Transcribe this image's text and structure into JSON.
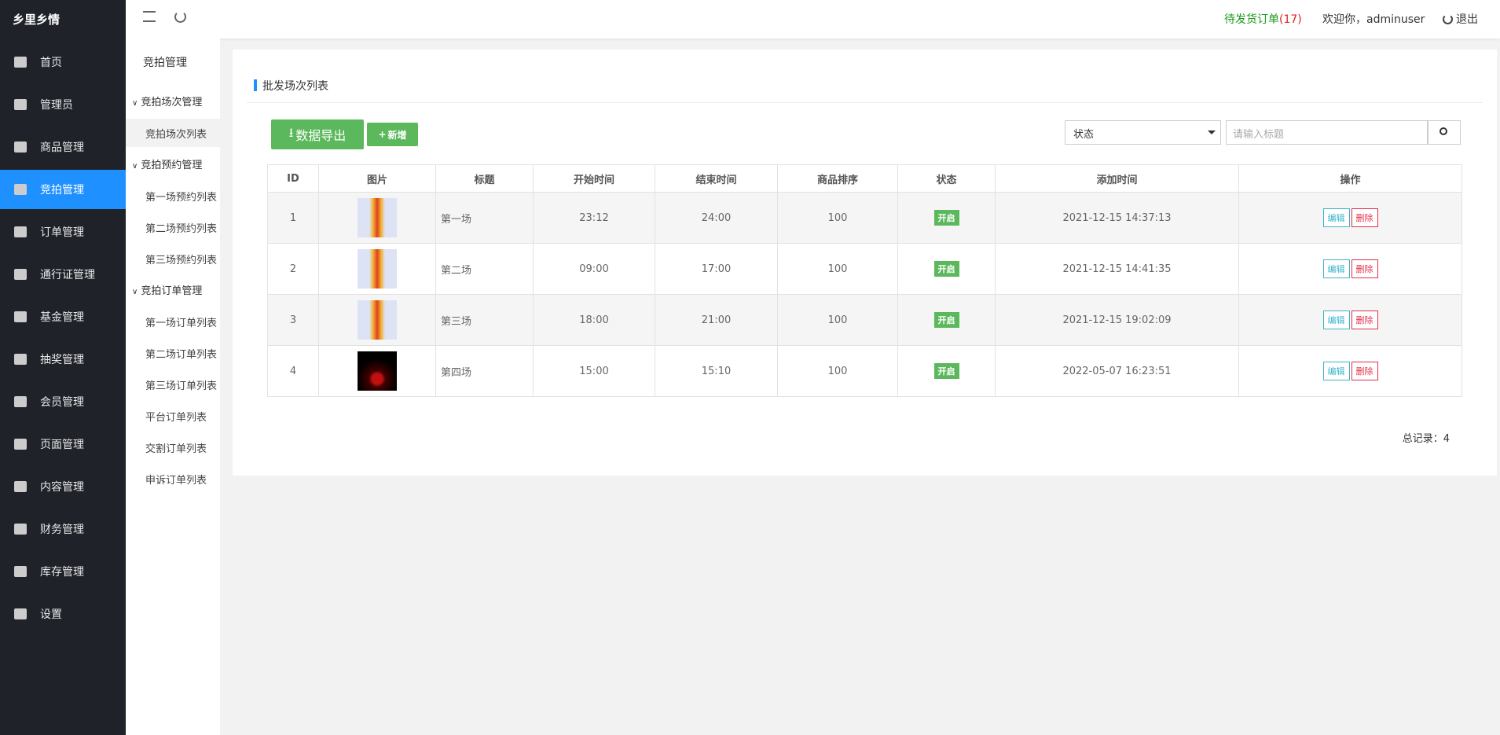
{
  "brand": "乡里乡情",
  "sidebar": [
    "首页",
    "管理员",
    "商品管理",
    "竞拍管理",
    "订单管理",
    "通行证管理",
    "基金管理",
    "抽奖管理",
    "会员管理",
    "页面管理",
    "内容管理",
    "财务管理",
    "库存管理",
    "设置"
  ],
  "topbar": {
    "pending_label": "待发货订单",
    "pending_count": "(17)",
    "welcome": "欢迎你，adminuser",
    "logout": "退出"
  },
  "submenu": {
    "title": "竞拍管理",
    "groups": [
      {
        "title": "竞拍场次管理",
        "items": [
          "竞拍场次列表"
        ]
      },
      {
        "title": "竞拍预约管理",
        "items": [
          "第一场预约列表",
          "第二场预约列表",
          "第三场预约列表"
        ]
      },
      {
        "title": "竞拍订单管理",
        "items": [
          "第一场订单列表",
          "第二场订单列表",
          "第三场订单列表",
          "平台订单列表",
          "交割订单列表",
          "申诉订单列表"
        ]
      }
    ]
  },
  "panel": {
    "title": "批发场次列表",
    "export": "数据导出",
    "add": "新增",
    "status_select": "状态",
    "search_placeholder": "请输入标题",
    "table": {
      "headers": [
        "ID",
        "图片",
        "标题",
        "开始时间",
        "结束时间",
        "商品排序",
        "状态",
        "添加时间",
        "操作"
      ],
      "rows": [
        [
          "1",
          "第一场",
          "23:12",
          "24:00",
          "100",
          "开启",
          "2021-12-15 14:37:13"
        ],
        [
          "2",
          "第二场",
          "09:00",
          "17:00",
          "100",
          "开启",
          "2021-12-15 14:41:35"
        ],
        [
          "3",
          "第三场",
          "18:00",
          "21:00",
          "100",
          "开启",
          "2021-12-15 19:02:09"
        ],
        [
          "4",
          "第四场",
          "15:00",
          "15:10",
          "100",
          "开启",
          "2022-05-07 16:23:51"
        ]
      ]
    },
    "actions": {
      "edit": "编辑",
      "delete": "删除"
    },
    "total": "总记录：4"
  }
}
